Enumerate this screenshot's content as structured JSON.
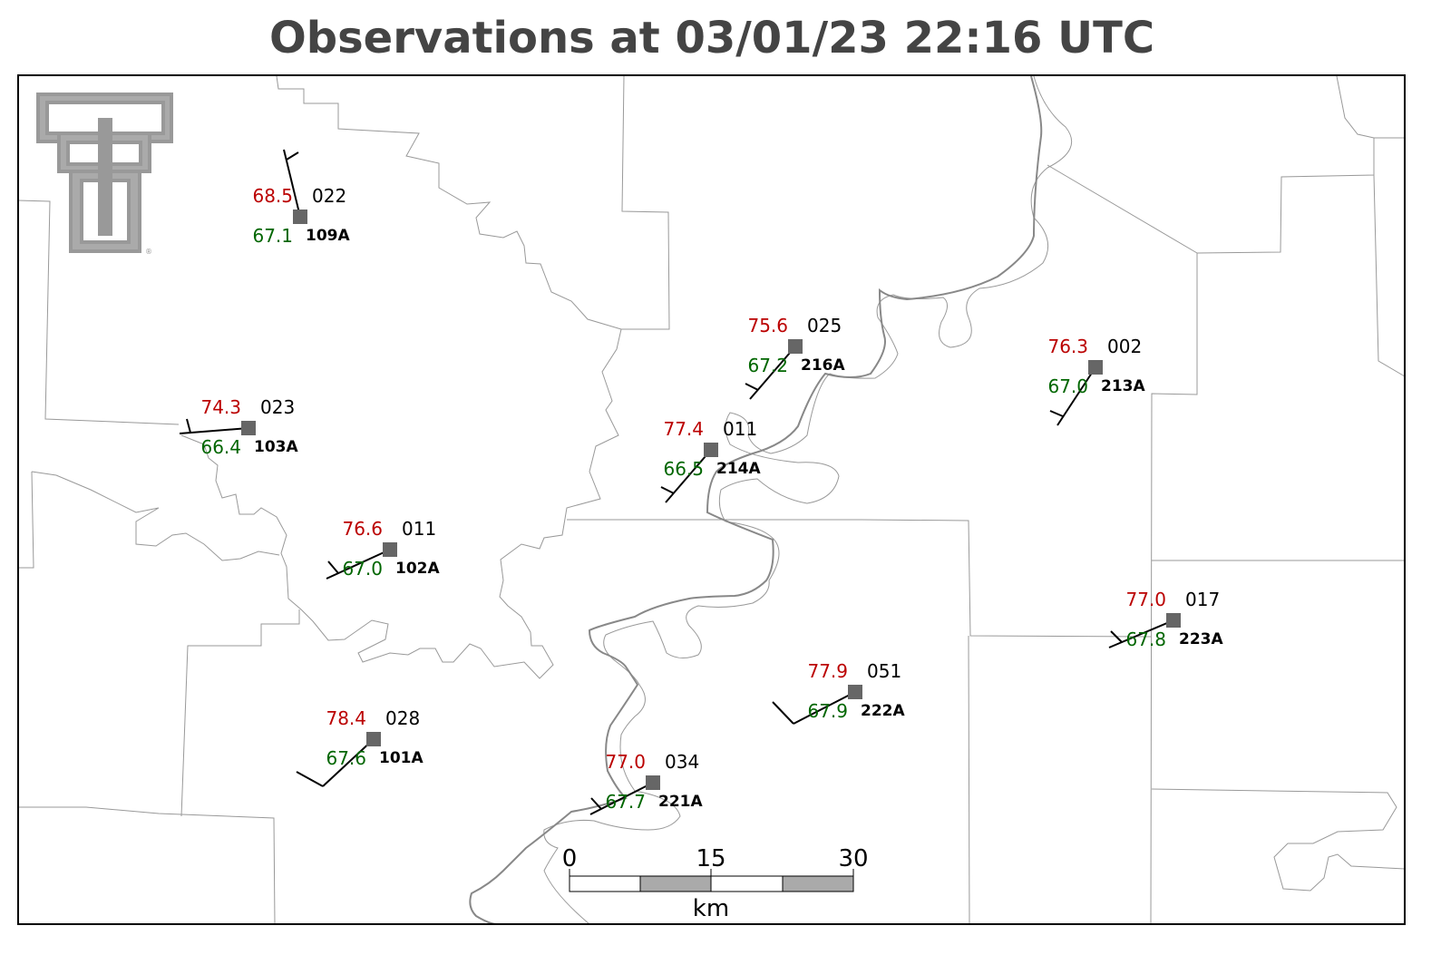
{
  "title": "Observations at 03/01/23 22:16 UTC",
  "stations": [
    {
      "id": "109A",
      "temperature": "68.5",
      "dewpoint": "67.1",
      "pressure": "022"
    },
    {
      "id": "103A",
      "temperature": "74.3",
      "dewpoint": "66.4",
      "pressure": "023"
    },
    {
      "id": "102A",
      "temperature": "76.6",
      "dewpoint": "67.0",
      "pressure": "011"
    },
    {
      "id": "101A",
      "temperature": "78.4",
      "dewpoint": "67.6",
      "pressure": "028"
    },
    {
      "id": "221A",
      "temperature": "77.0",
      "dewpoint": "67.7",
      "pressure": "034"
    },
    {
      "id": "214A",
      "temperature": "77.4",
      "dewpoint": "66.5",
      "pressure": "011"
    },
    {
      "id": "216A",
      "temperature": "75.6",
      "dewpoint": "67.2",
      "pressure": "025"
    },
    {
      "id": "222A",
      "temperature": "77.9",
      "dewpoint": "67.9",
      "pressure": "051"
    },
    {
      "id": "213A",
      "temperature": "76.3",
      "dewpoint": "67.0",
      "pressure": "002"
    },
    {
      "id": "223A",
      "temperature": "77.0",
      "dewpoint": "67.8",
      "pressure": "017"
    }
  ],
  "scale_bar": {
    "ticks": [
      "0",
      "15",
      "30"
    ],
    "unit": "km"
  }
}
